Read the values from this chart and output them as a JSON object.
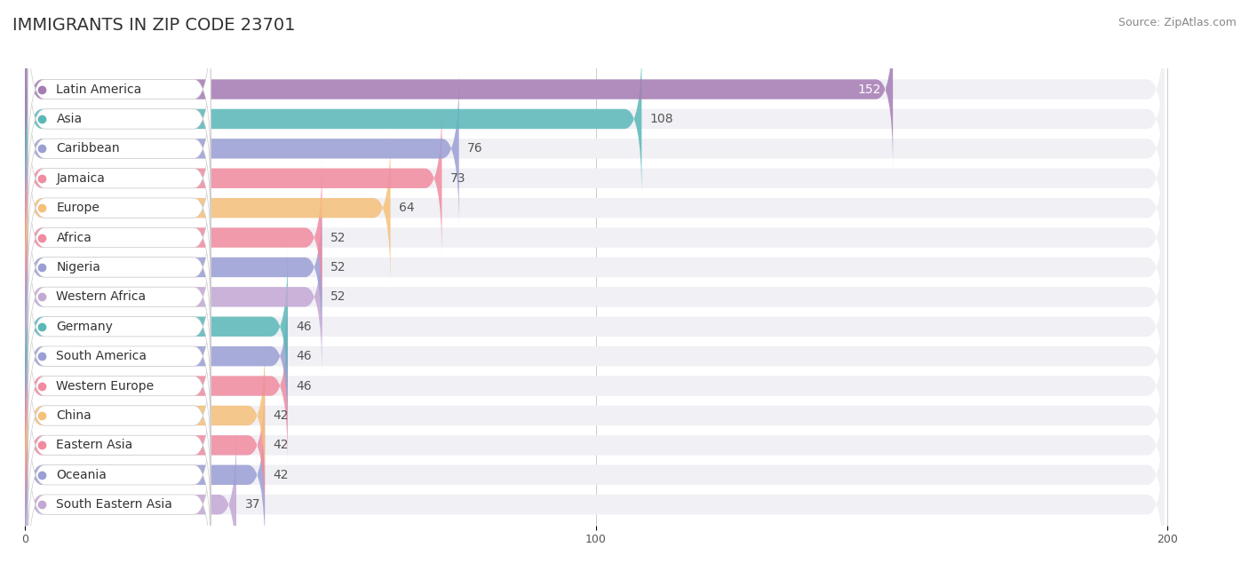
{
  "title": "IMMIGRANTS IN ZIP CODE 23701",
  "source": "Source: ZipAtlas.com",
  "categories": [
    "Latin America",
    "Asia",
    "Caribbean",
    "Jamaica",
    "Europe",
    "Africa",
    "Nigeria",
    "Western Africa",
    "Germany",
    "South America",
    "Western Europe",
    "China",
    "Eastern Asia",
    "Oceania",
    "South Eastern Asia"
  ],
  "values": [
    152,
    108,
    76,
    73,
    64,
    52,
    52,
    52,
    46,
    46,
    46,
    42,
    42,
    42,
    37
  ],
  "bar_colors": [
    "#a67cb5",
    "#5bb8b8",
    "#9b9fd4",
    "#f08ba0",
    "#f5c07a",
    "#f08ba0",
    "#9b9fd4",
    "#c4a8d4",
    "#5bb8b8",
    "#9b9fd4",
    "#f08ba0",
    "#f5c07a",
    "#f08ba0",
    "#9b9fd4",
    "#c4a8d4"
  ],
  "dot_colors": [
    "#a67cb5",
    "#5bb8b8",
    "#9b9fd4",
    "#f08ba0",
    "#f5c07a",
    "#f08ba0",
    "#9b9fd4",
    "#c4a8d4",
    "#5bb8b8",
    "#9b9fd4",
    "#f08ba0",
    "#f5c07a",
    "#f08ba0",
    "#9b9fd4",
    "#c4a8d4"
  ],
  "xlim": [
    0,
    210
  ],
  "background_color": "#ffffff",
  "bar_bg_color": "#f0f0f5",
  "title_fontsize": 14,
  "label_fontsize": 10,
  "value_fontsize": 10,
  "source_fontsize": 9,
  "grid_color": "#cccccc"
}
